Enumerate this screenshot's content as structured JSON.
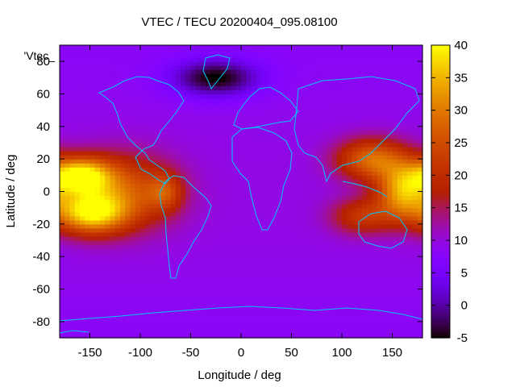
{
  "chart_data": {
    "type": "heatmap",
    "title": "VTEC / TECU 20200404_095.08100",
    "xlabel": "Longitude / deg",
    "ylabel": "Latitude / deg",
    "legend_key": "'Vtec_",
    "xlim": [
      -180,
      180
    ],
    "ylim": [
      -90,
      90
    ],
    "x_ticks": [
      -150,
      -100,
      -50,
      0,
      50,
      100,
      150
    ],
    "y_ticks": [
      -80,
      -60,
      -40,
      -20,
      0,
      20,
      40,
      60,
      80
    ],
    "colorbar": {
      "range": [
        -5,
        40
      ],
      "ticks": [
        -5,
        0,
        5,
        10,
        15,
        20,
        25,
        30,
        35,
        40
      ]
    },
    "background_value": 8,
    "features": [
      {
        "lon": -160,
        "lat": 10,
        "peak": 36,
        "spread_lon": 22,
        "spread_lat": 8
      },
      {
        "lon": -150,
        "lat": -13,
        "peak": 34,
        "spread_lon": 25,
        "spread_lat": 9
      },
      {
        "lon": -115,
        "lat": 0,
        "peak": 24,
        "spread_lon": 35,
        "spread_lat": 16
      },
      {
        "lon": -75,
        "lat": 0,
        "peak": 18,
        "spread_lon": 12,
        "spread_lat": 8
      },
      {
        "lon": 160,
        "lat": 0,
        "peak": 30,
        "spread_lon": 18,
        "spread_lat": 12
      },
      {
        "lon": 130,
        "lat": 20,
        "peak": 27,
        "spread_lon": 25,
        "spread_lat": 9
      },
      {
        "lon": 120,
        "lat": -15,
        "peak": 20,
        "spread_lon": 22,
        "spread_lat": 8
      },
      {
        "lon": -25,
        "lat": 70,
        "peak": -6,
        "spread_lon": 30,
        "spread_lat": 8
      }
    ]
  }
}
